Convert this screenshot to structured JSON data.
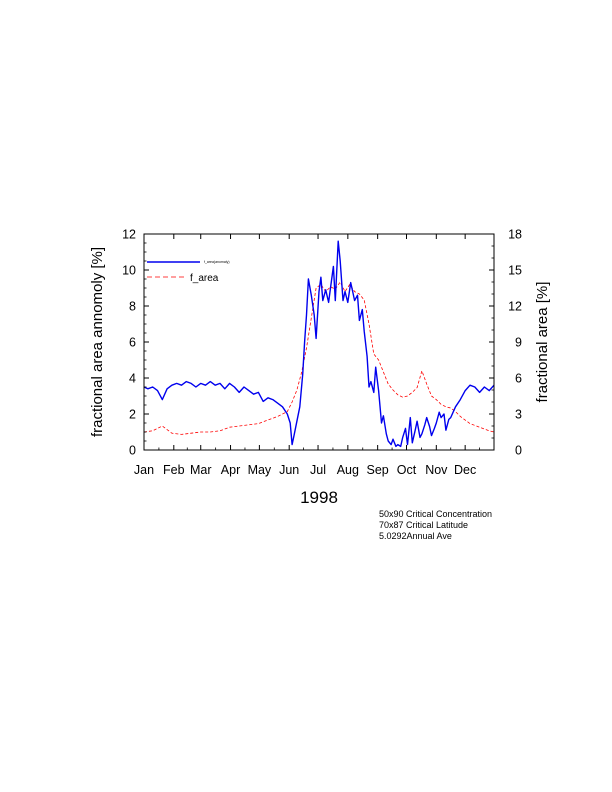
{
  "chart_data": {
    "type": "line",
    "xlabel": "1998",
    "ylabel_left": "fractional area annomoly [%]",
    "ylabel_right": "fractional area [%]",
    "x_tick_labels": [
      "Jan",
      "Feb",
      "Mar",
      "Apr",
      "May",
      "Jun",
      "Jul",
      "Aug",
      "Sep",
      "Oct",
      "Nov",
      "Dec"
    ],
    "x_tick_days": [
      1,
      32,
      60,
      91,
      121,
      152,
      182,
      213,
      244,
      274,
      305,
      335
    ],
    "xlim": [
      1,
      365
    ],
    "ylim_left": [
      0,
      12
    ],
    "ylim_right": [
      0,
      18
    ],
    "yticks_left": [
      0,
      2,
      4,
      6,
      8,
      10,
      12
    ],
    "yticks_right": [
      0,
      3,
      6,
      9,
      12,
      15,
      18
    ],
    "legend_position": "top-left",
    "series": [
      {
        "name": "f_area(anomaly)",
        "axis": "left",
        "color": "#0000ee",
        "style": "solid",
        "x": [
          1,
          5,
          10,
          15,
          20,
          25,
          30,
          35,
          40,
          45,
          50,
          55,
          60,
          65,
          70,
          75,
          80,
          85,
          90,
          95,
          100,
          105,
          110,
          115,
          120,
          125,
          130,
          135,
          140,
          145,
          150,
          153,
          155,
          157,
          160,
          163,
          166,
          168,
          170,
          172,
          175,
          178,
          180,
          183,
          185,
          187,
          190,
          193,
          195,
          198,
          200,
          203,
          205,
          208,
          210,
          213,
          216,
          218,
          220,
          223,
          225,
          228,
          230,
          233,
          235,
          237,
          240,
          242,
          245,
          248,
          250,
          253,
          255,
          258,
          260,
          263,
          265,
          268,
          270,
          273,
          275,
          278,
          280,
          283,
          285,
          288,
          290,
          293,
          295,
          298,
          300,
          303,
          305,
          308,
          310,
          313,
          315,
          318,
          320,
          325,
          330,
          335,
          340,
          345,
          350,
          355,
          360,
          365
        ],
        "y": [
          3.5,
          3.4,
          3.5,
          3.3,
          2.8,
          3.4,
          3.6,
          3.7,
          3.6,
          3.8,
          3.7,
          3.5,
          3.7,
          3.6,
          3.8,
          3.6,
          3.7,
          3.4,
          3.7,
          3.5,
          3.2,
          3.5,
          3.3,
          3.1,
          3.2,
          2.7,
          2.9,
          2.8,
          2.6,
          2.4,
          2.0,
          1.5,
          0.3,
          0.8,
          1.6,
          2.4,
          4.2,
          6.0,
          7.5,
          9.5,
          8.6,
          7.5,
          6.2,
          8.8,
          9.6,
          8.3,
          8.9,
          8.2,
          9.0,
          10.2,
          8.3,
          11.6,
          10.5,
          8.3,
          8.8,
          8.2,
          9.3,
          8.8,
          8.3,
          8.6,
          7.2,
          7.8,
          6.6,
          5.2,
          3.5,
          3.8,
          3.2,
          4.6,
          3.3,
          1.5,
          1.9,
          0.9,
          0.5,
          0.3,
          0.6,
          0.2,
          0.3,
          0.2,
          0.7,
          1.2,
          0.3,
          1.8,
          0.4,
          1.1,
          1.6,
          0.7,
          0.9,
          1.4,
          1.8,
          1.3,
          0.8,
          1.2,
          1.5,
          2.1,
          1.8,
          2.0,
          1.1,
          1.7,
          1.8,
          2.4,
          2.8,
          3.3,
          3.6,
          3.5,
          3.2,
          3.5,
          3.3,
          3.6
        ]
      },
      {
        "name": "f_area",
        "axis": "right",
        "color": "#ff0000",
        "style": "dashed",
        "x": [
          1,
          10,
          20,
          30,
          40,
          50,
          60,
          70,
          80,
          90,
          100,
          110,
          120,
          130,
          140,
          150,
          155,
          160,
          165,
          170,
          175,
          180,
          185,
          190,
          195,
          200,
          205,
          210,
          215,
          220,
          225,
          230,
          235,
          240,
          245,
          250,
          255,
          260,
          265,
          270,
          275,
          280,
          285,
          290,
          295,
          300,
          305,
          310,
          315,
          320,
          325,
          330,
          340,
          350,
          360,
          365
        ],
        "y": [
          1.5,
          1.6,
          2.0,
          1.4,
          1.3,
          1.4,
          1.5,
          1.5,
          1.6,
          1.9,
          2.0,
          2.1,
          2.2,
          2.5,
          2.8,
          3.2,
          4.0,
          5.0,
          6.5,
          8.5,
          11.0,
          13.5,
          13.8,
          13.2,
          13.6,
          13.4,
          14.0,
          13.2,
          13.8,
          13.2,
          13.0,
          12.5,
          10.5,
          8.0,
          7.5,
          6.5,
          5.5,
          5.0,
          4.6,
          4.4,
          4.5,
          4.8,
          5.2,
          6.6,
          5.5,
          4.5,
          4.2,
          3.8,
          3.6,
          3.5,
          3.2,
          2.8,
          2.2,
          1.9,
          1.6,
          1.5
        ]
      }
    ]
  },
  "legend": {
    "series1_label": "f_area(anomaly)",
    "series2_label": "f_area"
  },
  "notes": [
    "50x90 Critical Concentration",
    "70x87 Critical Latitude",
    "5.0292Annual Ave"
  ]
}
